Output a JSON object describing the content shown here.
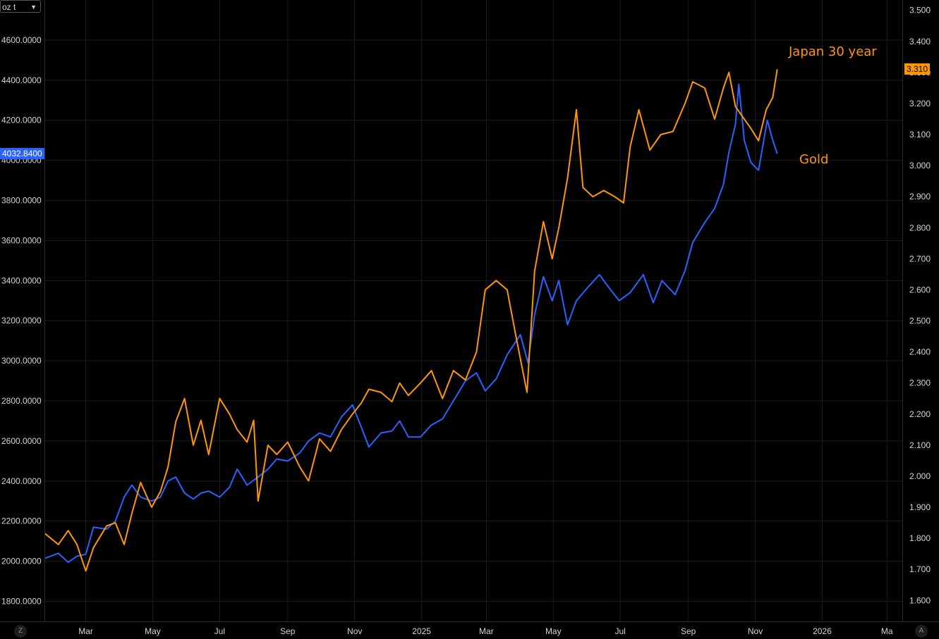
{
  "unit_selector": {
    "label": "oz t",
    "icon": "chevron-down-icon"
  },
  "corner_buttons": {
    "left": "Z",
    "right": "A"
  },
  "annotations": {
    "japan": "Japan 30 year",
    "gold": "Gold"
  },
  "colors": {
    "background": "#000000",
    "gold": "#2962ff",
    "japan": "#ff9800",
    "grid": "#1c1c1c",
    "text": "#d1d4dc"
  },
  "price_tags": {
    "left": "4032.8400",
    "right": "3.310"
  },
  "chart_data": {
    "type": "line",
    "left_axis": {
      "ylim": [
        1700,
        4800
      ],
      "ticks": [
        "4600.0000",
        "4400.0000",
        "4200.0000",
        "4000.0000",
        "3800.0000",
        "3600.0000",
        "3400.0000",
        "3200.0000",
        "3000.0000",
        "2800.0000",
        "2600.0000",
        "2400.0000",
        "2200.0000",
        "2000.0000",
        "1800.0000"
      ]
    },
    "right_axis": {
      "ylim": [
        1.5326,
        3.5333
      ],
      "ticks": [
        "3.500",
        "3.400",
        "3.300",
        "3.200",
        "3.100",
        "3.000",
        "2.900",
        "2.800",
        "2.700",
        "2.600",
        "2.500",
        "2.400",
        "2.300",
        "2.200",
        "2.100",
        "2.000",
        "1.900",
        "1.800",
        "1.700",
        "1.600"
      ]
    },
    "x_ticks": [
      "Mar",
      "May",
      "Jul",
      "Sep",
      "Nov",
      "2025",
      "Mar",
      "May",
      "Jul",
      "Sep",
      "Nov",
      "2026",
      "Ma"
    ],
    "x_range": [
      "2024-01-24",
      "2026-03-15"
    ],
    "grid": true,
    "series": [
      {
        "name": "Gold",
        "axis": "left",
        "points": [
          [
            "2024-01-24",
            2015
          ],
          [
            "2024-02-05",
            2040
          ],
          [
            "2024-02-14",
            1995
          ],
          [
            "2024-02-22",
            2025
          ],
          [
            "2024-03-01",
            2035
          ],
          [
            "2024-03-08",
            2170
          ],
          [
            "2024-03-20",
            2160
          ],
          [
            "2024-03-28",
            2200
          ],
          [
            "2024-04-05",
            2320
          ],
          [
            "2024-04-12",
            2380
          ],
          [
            "2024-04-20",
            2320
          ],
          [
            "2024-04-30",
            2300
          ],
          [
            "2024-05-08",
            2320
          ],
          [
            "2024-05-15",
            2400
          ],
          [
            "2024-05-22",
            2420
          ],
          [
            "2024-05-30",
            2340
          ],
          [
            "2024-06-07",
            2310
          ],
          [
            "2024-06-14",
            2340
          ],
          [
            "2024-06-21",
            2350
          ],
          [
            "2024-07-01",
            2320
          ],
          [
            "2024-07-10",
            2370
          ],
          [
            "2024-07-17",
            2460
          ],
          [
            "2024-07-26",
            2380
          ],
          [
            "2024-08-05",
            2420
          ],
          [
            "2024-08-14",
            2460
          ],
          [
            "2024-08-22",
            2510
          ],
          [
            "2024-09-01",
            2500
          ],
          [
            "2024-09-12",
            2540
          ],
          [
            "2024-09-20",
            2600
          ],
          [
            "2024-09-30",
            2640
          ],
          [
            "2024-10-10",
            2620
          ],
          [
            "2024-10-20",
            2720
          ],
          [
            "2024-10-30",
            2780
          ],
          [
            "2024-11-07",
            2670
          ],
          [
            "2024-11-14",
            2570
          ],
          [
            "2024-11-25",
            2640
          ],
          [
            "2024-12-05",
            2650
          ],
          [
            "2024-12-12",
            2700
          ],
          [
            "2024-12-20",
            2620
          ],
          [
            "2024-12-31",
            2620
          ],
          [
            "2025-01-10",
            2680
          ],
          [
            "2025-01-20",
            2710
          ],
          [
            "2025-01-30",
            2800
          ],
          [
            "2025-02-10",
            2900
          ],
          [
            "2025-02-20",
            2940
          ],
          [
            "2025-02-28",
            2850
          ],
          [
            "2025-03-10",
            2910
          ],
          [
            "2025-03-20",
            3030
          ],
          [
            "2025-04-01",
            3130
          ],
          [
            "2025-04-08",
            2990
          ],
          [
            "2025-04-14",
            3230
          ],
          [
            "2025-04-22",
            3420
          ],
          [
            "2025-04-30",
            3300
          ],
          [
            "2025-05-06",
            3400
          ],
          [
            "2025-05-14",
            3180
          ],
          [
            "2025-05-22",
            3300
          ],
          [
            "2025-06-02",
            3370
          ],
          [
            "2025-06-12",
            3430
          ],
          [
            "2025-06-20",
            3370
          ],
          [
            "2025-06-30",
            3300
          ],
          [
            "2025-07-10",
            3340
          ],
          [
            "2025-07-22",
            3430
          ],
          [
            "2025-07-31",
            3290
          ],
          [
            "2025-08-08",
            3400
          ],
          [
            "2025-08-20",
            3330
          ],
          [
            "2025-08-29",
            3450
          ],
          [
            "2025-09-05",
            3590
          ],
          [
            "2025-09-16",
            3690
          ],
          [
            "2025-09-25",
            3760
          ],
          [
            "2025-10-03",
            3880
          ],
          [
            "2025-10-08",
            4040
          ],
          [
            "2025-10-14",
            4180
          ],
          [
            "2025-10-17",
            4380
          ],
          [
            "2025-10-22",
            4100
          ],
          [
            "2025-10-28",
            3990
          ],
          [
            "2025-11-04",
            3950
          ],
          [
            "2025-11-12",
            4200
          ],
          [
            "2025-11-17",
            4100
          ],
          [
            "2025-11-21",
            4032.84
          ]
        ]
      },
      {
        "name": "Japan 30 year",
        "axis": "right",
        "points": [
          [
            "2024-01-24",
            1.815
          ],
          [
            "2024-02-05",
            1.78
          ],
          [
            "2024-02-14",
            1.825
          ],
          [
            "2024-02-22",
            1.78
          ],
          [
            "2024-03-01",
            1.695
          ],
          [
            "2024-03-08",
            1.77
          ],
          [
            "2024-03-20",
            1.84
          ],
          [
            "2024-03-28",
            1.85
          ],
          [
            "2024-04-05",
            1.78
          ],
          [
            "2024-04-12",
            1.88
          ],
          [
            "2024-04-20",
            1.98
          ],
          [
            "2024-04-30",
            1.9
          ],
          [
            "2024-05-08",
            1.95
          ],
          [
            "2024-05-15",
            2.03
          ],
          [
            "2024-05-22",
            2.175
          ],
          [
            "2024-05-30",
            2.25
          ],
          [
            "2024-06-07",
            2.1
          ],
          [
            "2024-06-14",
            2.18
          ],
          [
            "2024-06-21",
            2.07
          ],
          [
            "2024-07-01",
            2.25
          ],
          [
            "2024-07-10",
            2.2
          ],
          [
            "2024-07-17",
            2.15
          ],
          [
            "2024-07-26",
            2.11
          ],
          [
            "2024-08-01",
            2.18
          ],
          [
            "2024-08-05",
            1.92
          ],
          [
            "2024-08-14",
            2.1
          ],
          [
            "2024-08-22",
            2.07
          ],
          [
            "2024-09-01",
            2.11
          ],
          [
            "2024-09-12",
            2.03
          ],
          [
            "2024-09-20",
            1.985
          ],
          [
            "2024-09-30",
            2.12
          ],
          [
            "2024-10-10",
            2.08
          ],
          [
            "2024-10-20",
            2.15
          ],
          [
            "2024-10-30",
            2.2
          ],
          [
            "2024-11-07",
            2.235
          ],
          [
            "2024-11-14",
            2.28
          ],
          [
            "2024-11-25",
            2.27
          ],
          [
            "2024-12-05",
            2.24
          ],
          [
            "2024-12-12",
            2.3
          ],
          [
            "2024-12-20",
            2.26
          ],
          [
            "2024-12-31",
            2.3
          ],
          [
            "2025-01-10",
            2.34
          ],
          [
            "2025-01-20",
            2.25
          ],
          [
            "2025-01-30",
            2.34
          ],
          [
            "2025-02-10",
            2.31
          ],
          [
            "2025-02-20",
            2.4
          ],
          [
            "2025-02-28",
            2.6
          ],
          [
            "2025-03-10",
            2.63
          ],
          [
            "2025-03-20",
            2.6
          ],
          [
            "2025-03-28",
            2.45
          ],
          [
            "2025-04-07",
            2.27
          ],
          [
            "2025-04-14",
            2.66
          ],
          [
            "2025-04-22",
            2.82
          ],
          [
            "2025-04-30",
            2.7
          ],
          [
            "2025-05-06",
            2.8
          ],
          [
            "2025-05-14",
            2.96
          ],
          [
            "2025-05-22",
            3.18
          ],
          [
            "2025-05-28",
            2.93
          ],
          [
            "2025-06-06",
            2.9
          ],
          [
            "2025-06-16",
            2.92
          ],
          [
            "2025-06-26",
            2.9
          ],
          [
            "2025-07-04",
            2.88
          ],
          [
            "2025-07-10",
            3.06
          ],
          [
            "2025-07-18",
            3.18
          ],
          [
            "2025-07-28",
            3.05
          ],
          [
            "2025-08-07",
            3.1
          ],
          [
            "2025-08-18",
            3.11
          ],
          [
            "2025-08-29",
            3.2
          ],
          [
            "2025-09-05",
            3.27
          ],
          [
            "2025-09-16",
            3.25
          ],
          [
            "2025-09-25",
            3.15
          ],
          [
            "2025-10-03",
            3.25
          ],
          [
            "2025-10-08",
            3.3
          ],
          [
            "2025-10-14",
            3.19
          ],
          [
            "2025-10-22",
            3.15
          ],
          [
            "2025-10-28",
            3.12
          ],
          [
            "2025-11-04",
            3.08
          ],
          [
            "2025-11-11",
            3.18
          ],
          [
            "2025-11-17",
            3.22
          ],
          [
            "2025-11-21",
            3.31
          ]
        ]
      }
    ]
  }
}
